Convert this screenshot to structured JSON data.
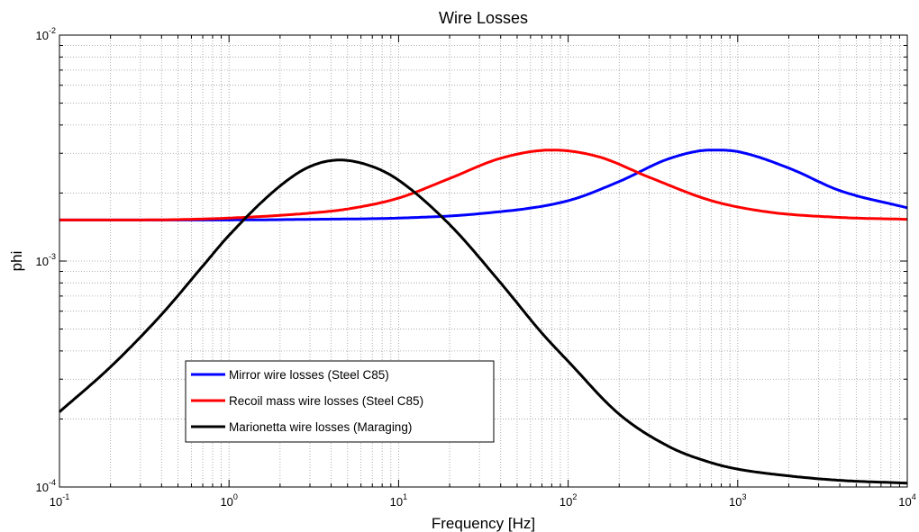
{
  "chart_data": {
    "type": "line",
    "title": "Wire Losses",
    "xlabel": "Frequency [Hz]",
    "ylabel": "phi",
    "xscale": "log",
    "yscale": "log",
    "xlim": [
      0.1,
      10000
    ],
    "ylim": [
      0.0001,
      0.01
    ],
    "grid": true,
    "legend_position": "lower-left",
    "x_ticks": [
      {
        "base": "10",
        "exp": "-1",
        "value": 0.1
      },
      {
        "base": "10",
        "exp": "0",
        "value": 1
      },
      {
        "base": "10",
        "exp": "1",
        "value": 10
      },
      {
        "base": "10",
        "exp": "2",
        "value": 100
      },
      {
        "base": "10",
        "exp": "3",
        "value": 1000
      },
      {
        "base": "10",
        "exp": "4",
        "value": 10000
      }
    ],
    "y_ticks": [
      {
        "base": "10",
        "exp": "-4",
        "value": 0.0001
      },
      {
        "base": "10",
        "exp": "-3",
        "value": 0.001
      },
      {
        "base": "10",
        "exp": "-2",
        "value": 0.01
      }
    ],
    "series": [
      {
        "name": "Mirror wire losses (Steel C85)",
        "color": "#0000ff",
        "x": [
          0.1,
          0.3,
          1,
          3,
          10,
          30,
          100,
          200,
          400,
          700,
          1000,
          2000,
          4000,
          10000
        ],
        "y": [
          0.00152,
          0.00152,
          0.00152,
          0.00153,
          0.00155,
          0.00162,
          0.00185,
          0.00225,
          0.00285,
          0.0031,
          0.00305,
          0.00258,
          0.00205,
          0.00172
        ]
      },
      {
        "name": "Recoil mass wire losses (Steel C85)",
        "color": "#ff0000",
        "x": [
          0.1,
          0.3,
          1,
          3,
          5,
          10,
          20,
          40,
          80,
          150,
          300,
          700,
          1500,
          4000,
          10000
        ],
        "y": [
          0.00152,
          0.00152,
          0.00155,
          0.00163,
          0.0017,
          0.0019,
          0.00232,
          0.00285,
          0.0031,
          0.0029,
          0.00235,
          0.00185,
          0.00165,
          0.00156,
          0.00153
        ]
      },
      {
        "name": "Marionetta wire losses (Maraging)",
        "color": "#000000",
        "x": [
          0.1,
          0.2,
          0.4,
          0.7,
          1,
          2,
          3,
          4.5,
          7,
          10,
          20,
          40,
          70,
          100,
          200,
          400,
          700,
          1000,
          2000,
          4000,
          10000
        ],
        "y": [
          0.000215,
          0.00034,
          0.00058,
          0.00095,
          0.0013,
          0.00215,
          0.00262,
          0.0028,
          0.00262,
          0.00228,
          0.00145,
          0.0008,
          0.00048,
          0.00036,
          0.00021,
          0.00015,
          0.000128,
          0.00012,
          0.000112,
          0.000107,
          0.000104
        ]
      }
    ]
  }
}
